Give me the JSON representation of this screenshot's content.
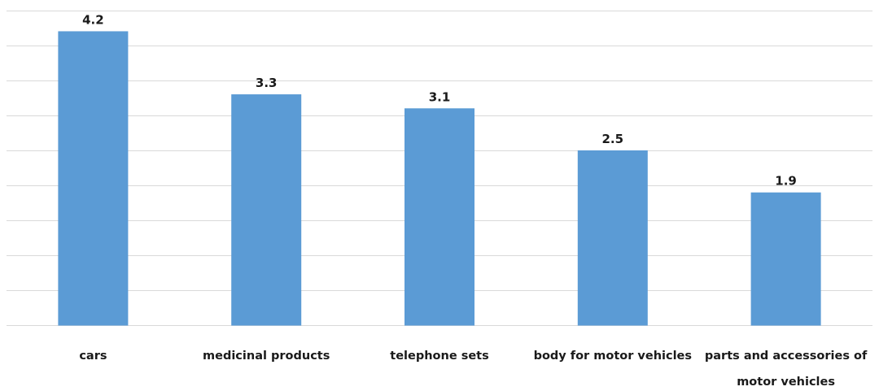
{
  "chart_data": {
    "type": "bar",
    "categories": [
      [
        "cars"
      ],
      [
        "medicinal products"
      ],
      [
        "telephone sets"
      ],
      [
        "body for motor vehicles"
      ],
      [
        "parts and accessories of",
        "motor vehicles"
      ]
    ],
    "values": [
      4.2,
      3.3,
      3.1,
      2.5,
      1.9
    ],
    "data_labels": [
      "4.2",
      "3.3",
      "3.1",
      "2.5",
      "1.9"
    ],
    "title": "",
    "xlabel": "",
    "ylabel": "",
    "ylim": [
      0,
      4.5
    ],
    "grid": true,
    "legend": "none",
    "bar_color": "#5b9bd5",
    "gridline_color": "#d9d9d9"
  }
}
